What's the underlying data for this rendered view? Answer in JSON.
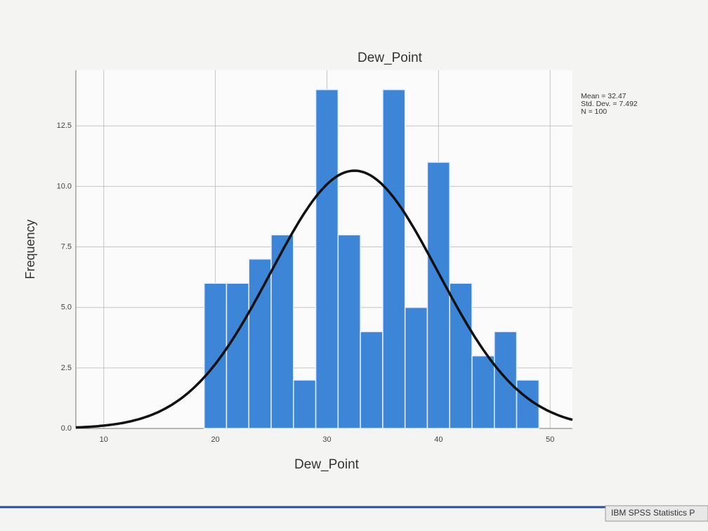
{
  "chart_data": {
    "type": "histogram",
    "title": "Dew_Point",
    "x_label": "Dew_Point",
    "y_label": "Frequency",
    "bins": [
      19,
      21,
      23,
      25,
      27,
      29,
      31,
      33,
      35,
      37,
      39,
      41,
      43,
      45,
      47,
      49
    ],
    "values": [
      6,
      6,
      7,
      8,
      2,
      14,
      8,
      4,
      14,
      5,
      11,
      6,
      3,
      4,
      2
    ],
    "color": "#3d85d6",
    "xlim": [
      7.5,
      52
    ],
    "xticks": [
      10,
      20,
      30,
      40,
      50
    ],
    "ylim": [
      0,
      14.8
    ],
    "yticks": [
      {
        "value": 0,
        "label": "0.0"
      },
      {
        "value": 2.5,
        "label": "2.5"
      },
      {
        "value": 5,
        "label": "5.0"
      },
      {
        "value": 7.5,
        "label": "7.5"
      },
      {
        "value": 10,
        "label": "10.0"
      },
      {
        "value": 12.5,
        "label": "12.5"
      }
    ],
    "grid": true,
    "normal_curve": {
      "mean": 32.47,
      "std_dev": 7.492,
      "n": 100,
      "color": "#111111",
      "labels": [
        "Mean = 32.47",
        "Std. Dev. = 7.492",
        "N = 100"
      ]
    }
  },
  "status_bar": "IBM SPSS Statistics P"
}
